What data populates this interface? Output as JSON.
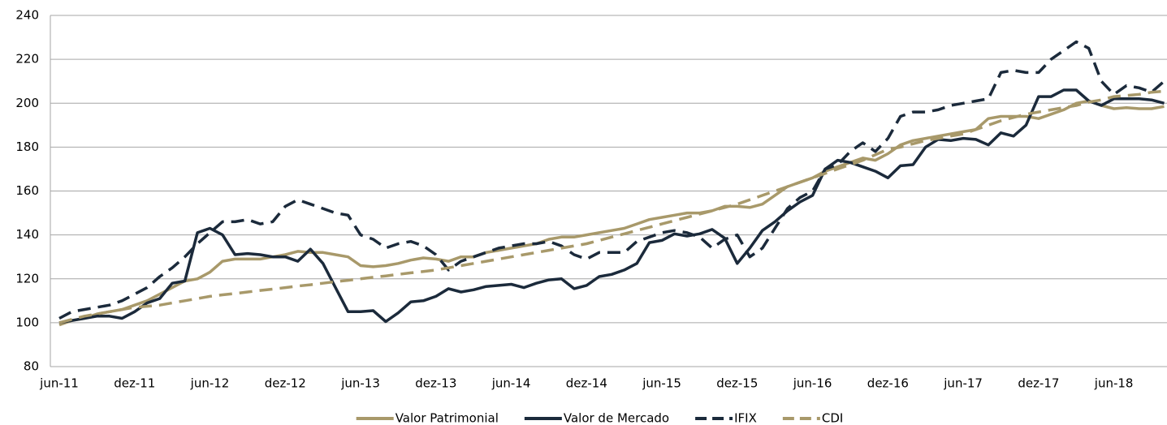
{
  "chart_data": {
    "type": "line",
    "categories": [
      "jun-11",
      null,
      null,
      null,
      null,
      null,
      "dez-11",
      null,
      null,
      null,
      null,
      null,
      "jun-12",
      null,
      null,
      null,
      null,
      null,
      "dez-12",
      null,
      null,
      null,
      null,
      null,
      "jun-13",
      null,
      null,
      null,
      null,
      null,
      "dez-13",
      null,
      null,
      null,
      null,
      null,
      "jun-14",
      null,
      null,
      null,
      null,
      null,
      "dez-14",
      null,
      null,
      null,
      null,
      null,
      "jun-15",
      null,
      null,
      null,
      null,
      null,
      "dez-15",
      null,
      null,
      null,
      null,
      null,
      "jun-16",
      null,
      null,
      null,
      null,
      null,
      "dez-16",
      null,
      null,
      null,
      null,
      null,
      "jun-17",
      null,
      null,
      null,
      null,
      null,
      "dez-17",
      null,
      null,
      null,
      null,
      null,
      "jun-18",
      null,
      null,
      null,
      null
    ],
    "series": [
      {
        "name": "Valor Patrimonial",
        "color": "#a8996a",
        "dash": false,
        "values": [
          99,
          101,
          102,
          104,
          105,
          106,
          108,
          110,
          113,
          116,
          119,
          120,
          123,
          128,
          129,
          129,
          129,
          130,
          131,
          132.5,
          132,
          132,
          131,
          130,
          126,
          125.5,
          126,
          127,
          128.5,
          129.5,
          129,
          128,
          130,
          130,
          132,
          133,
          134,
          135,
          136,
          138,
          139,
          139,
          140,
          141,
          142,
          143,
          145,
          147,
          148,
          149,
          150,
          150,
          151,
          153,
          153,
          152.5,
          154,
          158,
          162,
          164,
          166,
          169,
          171,
          173,
          175,
          174,
          177,
          181,
          183,
          184,
          185,
          186,
          187,
          188,
          193,
          194,
          194,
          194,
          193,
          195,
          197,
          200,
          201,
          199,
          197.5,
          198,
          197.5,
          197.5,
          198.5
        ]
      },
      {
        "name": "Valor de Mercado",
        "color": "#1b2a3b",
        "dash": false,
        "values": [
          100,
          101,
          102,
          103,
          103,
          102,
          105,
          109,
          111,
          118,
          119,
          141,
          143,
          140,
          131,
          131.5,
          131,
          130,
          130,
          128,
          133.5,
          127,
          116,
          105,
          105,
          105.5,
          100.5,
          104.5,
          109.5,
          110,
          112,
          115.5,
          114,
          115,
          116.5,
          117,
          117.5,
          116,
          118,
          119.5,
          120,
          115.5,
          117,
          121,
          122,
          124,
          127,
          136.5,
          137.5,
          140.5,
          139.5,
          140.5,
          142.5,
          138.5,
          127,
          134,
          142,
          146,
          151,
          155,
          158,
          170,
          174,
          173,
          171,
          169,
          166,
          171.5,
          172,
          180,
          183.5,
          183,
          184,
          183.5,
          181,
          186.5,
          185,
          190,
          203,
          203,
          206,
          206,
          201,
          199,
          202,
          202,
          202,
          201.5,
          200
        ]
      },
      {
        "name": "IFIX",
        "color": "#1b2a3b",
        "dash": true,
        "values": [
          102,
          105,
          106,
          107,
          108,
          110,
          113,
          116,
          121,
          125,
          130,
          136,
          141,
          146,
          146,
          147,
          145,
          146,
          153,
          156,
          154,
          152,
          150,
          149,
          140,
          138,
          134,
          136,
          137,
          135,
          131,
          124,
          128,
          130,
          132,
          134,
          135,
          136,
          136,
          137,
          135,
          131,
          129,
          132,
          132,
          132,
          137,
          139,
          141,
          142,
          141,
          139,
          134,
          138,
          140,
          130,
          134,
          143,
          152,
          157,
          160,
          170,
          172,
          178,
          182,
          178,
          184,
          194,
          196,
          196,
          197,
          199,
          200,
          201,
          202,
          214,
          215,
          214,
          214,
          220,
          224,
          228,
          225,
          210,
          204,
          208,
          207,
          205,
          210
        ]
      },
      {
        "name": "CDI",
        "color": "#a8996a",
        "dash": true,
        "values": [
          100,
          101.5,
          103,
          104,
          105,
          106,
          107,
          107.5,
          108,
          109,
          110,
          111,
          112,
          112.7,
          113.3,
          114,
          114.7,
          115.3,
          116,
          116.7,
          117.3,
          118,
          118.7,
          119.3,
          120,
          120.7,
          121.3,
          122,
          122.7,
          123.3,
          124,
          125,
          126,
          127,
          128,
          129,
          130,
          131,
          132,
          133,
          134,
          135,
          136,
          137.5,
          139,
          140.5,
          142,
          143.5,
          145,
          146.5,
          148,
          149.5,
          151,
          152.5,
          154,
          156,
          158,
          160,
          162,
          164,
          166,
          168,
          170,
          172,
          174,
          176.5,
          179,
          180,
          181.5,
          183,
          184,
          185,
          186,
          188,
          190,
          192,
          193.5,
          195,
          196,
          197,
          198,
          199,
          200.5,
          201.5,
          203,
          203.5,
          204,
          205,
          205.5
        ]
      }
    ],
    "ylim": [
      80,
      240
    ],
    "yticks": [
      80,
      100,
      120,
      140,
      160,
      180,
      200,
      220,
      240
    ],
    "grid": true
  }
}
